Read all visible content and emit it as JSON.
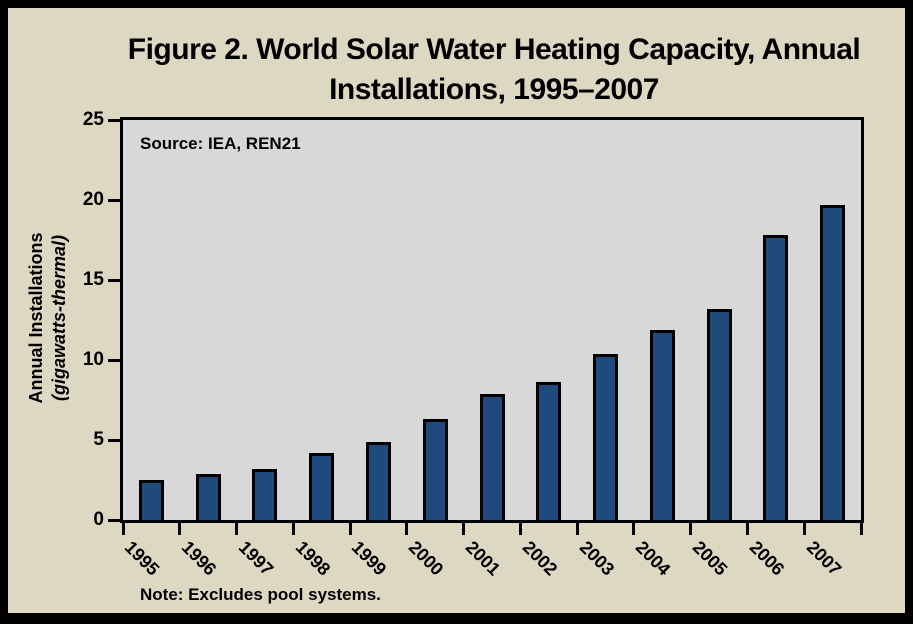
{
  "figure": {
    "title_lines": [
      "Figure 2. World Solar Water Heating Capacity, Annual",
      "Installations, 1995–2007"
    ],
    "source_note": "Source: IEA, REN21",
    "footnote": "Note: Excludes pool systems."
  },
  "chart_data": {
    "type": "bar",
    "title": "Figure 2. World Solar Water Heating Capacity, Annual Installations, 1995–2007",
    "categories": [
      "1995",
      "1996",
      "1997",
      "1998",
      "1999",
      "2000",
      "2001",
      "2002",
      "2003",
      "2004",
      "2005",
      "2006",
      "2007"
    ],
    "values": [
      2.5,
      2.9,
      3.2,
      4.2,
      4.9,
      6.3,
      7.9,
      8.6,
      10.4,
      11.9,
      13.2,
      17.8,
      19.7
    ],
    "xlabel": "",
    "ylabel": "Annual Installations (gigawatts-thermal)",
    "ylabel_lines": [
      "Annual Installations",
      "(gigawatts-thermal)"
    ],
    "ylim": [
      0,
      25
    ],
    "yticks": [
      0,
      5,
      10,
      15,
      20,
      25
    ],
    "grid": false,
    "legend": false,
    "bar_label_rotation_deg": 45,
    "source_note": "Source: IEA, REN21",
    "footnote": "Note: Excludes pool systems.",
    "colors": {
      "bar": "#1F4A7D",
      "bar_border": "#000000",
      "plot_bg": "#D8D8D8",
      "page_bg": "#DDD8C2",
      "frame": "#000000",
      "text": "#000000"
    }
  }
}
